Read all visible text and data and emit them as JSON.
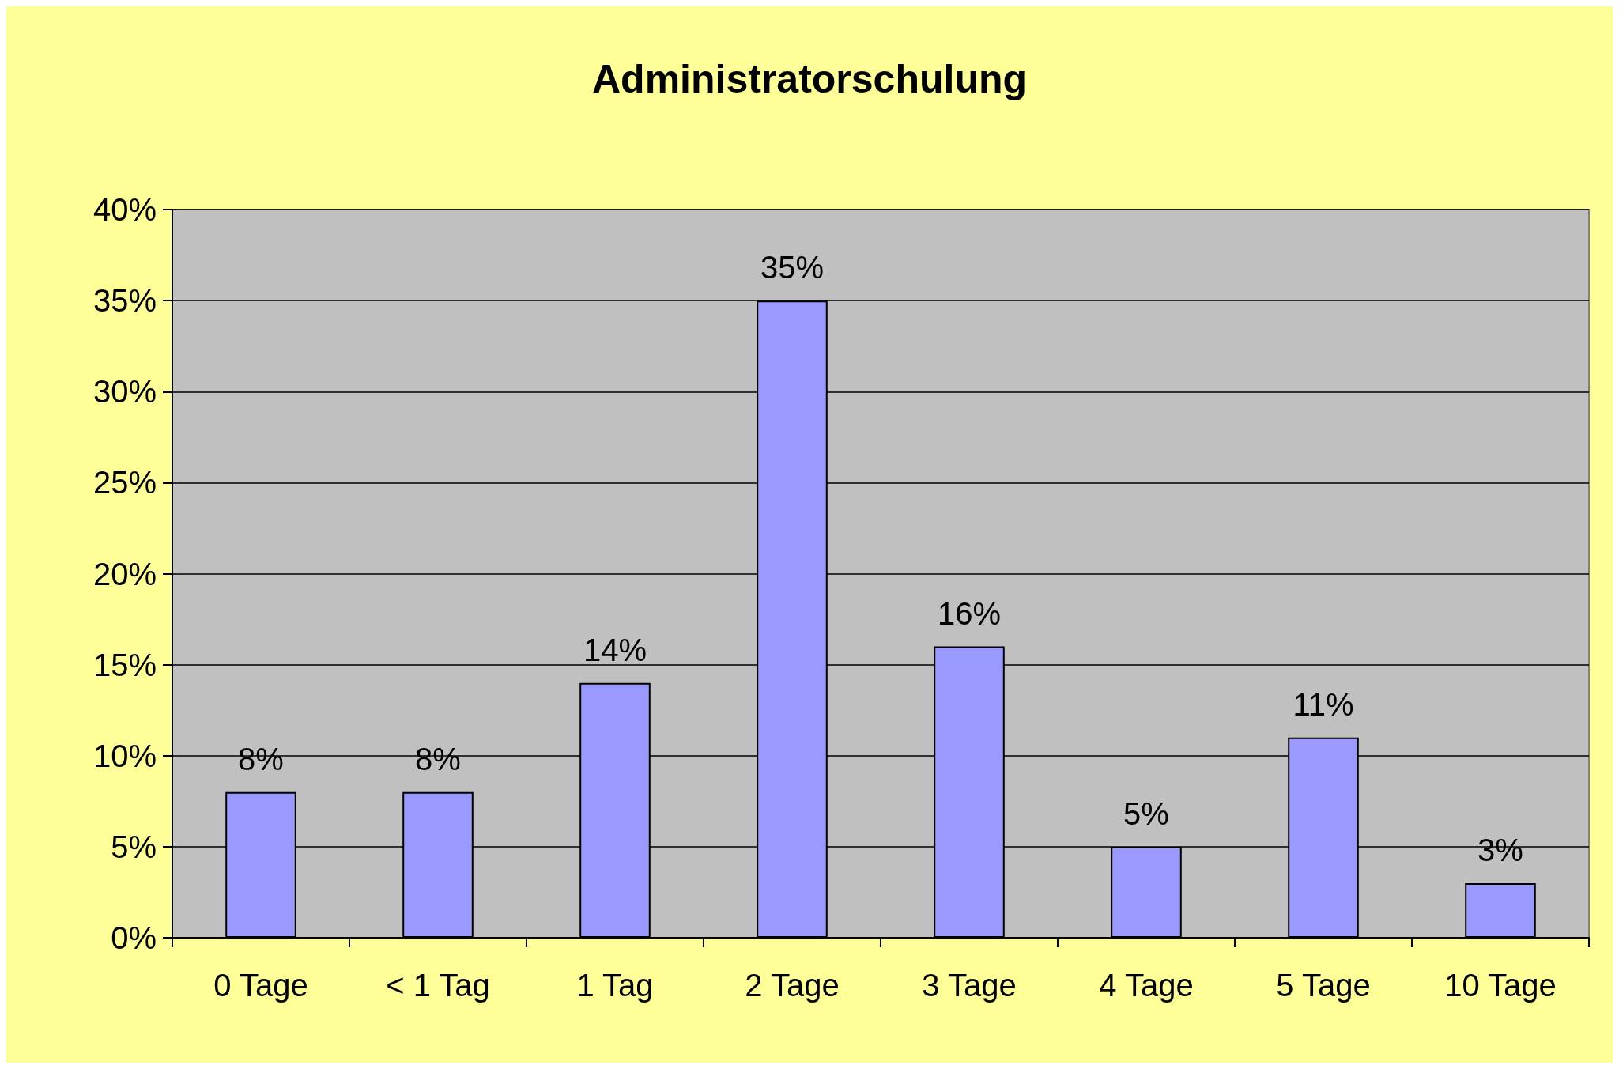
{
  "chart_data": {
    "type": "bar",
    "title": "Administratorschulung",
    "categories": [
      "0 Tage",
      "< 1 Tag",
      "1 Tag",
      "2 Tage",
      "3 Tage",
      "4 Tage",
      "5 Tage",
      "10 Tage"
    ],
    "values": [
      8,
      8,
      14,
      35,
      16,
      5,
      11,
      3
    ],
    "value_labels": [
      "8%",
      "8%",
      "14%",
      "35%",
      "16%",
      "5%",
      "11%",
      "3%"
    ],
    "color": "#9999ff",
    "ylim": [
      0,
      40
    ],
    "yticks": [
      {
        "value": 0,
        "label": "0%"
      },
      {
        "value": 5,
        "label": "5%"
      },
      {
        "value": 10,
        "label": "10%"
      },
      {
        "value": 15,
        "label": "15%"
      },
      {
        "value": 20,
        "label": "20%"
      },
      {
        "value": 25,
        "label": "25%"
      },
      {
        "value": 30,
        "label": "30%"
      },
      {
        "value": 35,
        "label": "35%"
      },
      {
        "value": 40,
        "label": "40%"
      }
    ],
    "grid": "y"
  }
}
